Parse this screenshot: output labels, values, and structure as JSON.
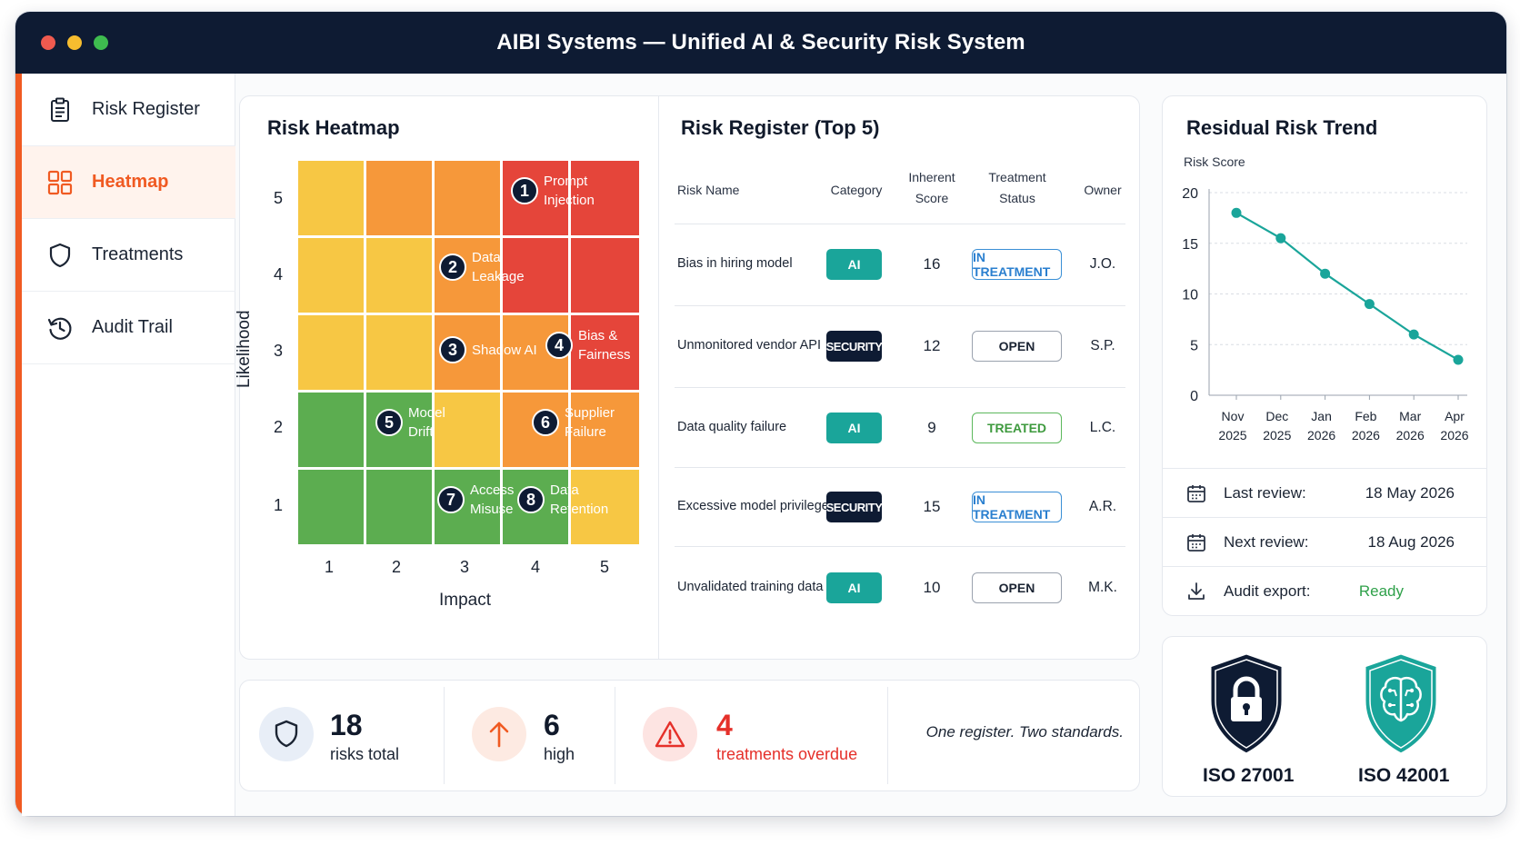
{
  "window": {
    "title": "AIBI Systems — Unified AI & Security Risk System"
  },
  "sidebar": {
    "items": [
      {
        "label": "Risk Register",
        "icon": "clipboard-icon",
        "active": false
      },
      {
        "label": "Heatmap",
        "icon": "grid-icon",
        "active": true
      },
      {
        "label": "Treatments",
        "icon": "shield-icon",
        "active": false
      },
      {
        "label": "Audit Trail",
        "icon": "history-icon",
        "active": false
      }
    ]
  },
  "heatmap": {
    "title": "Risk Heatmap",
    "x_label": "Impact",
    "y_label": "Likelihood",
    "x_ticks": [
      "1",
      "2",
      "3",
      "4",
      "5"
    ],
    "y_ticks": [
      "5",
      "4",
      "3",
      "2",
      "1"
    ],
    "risks": [
      {
        "num": "1",
        "label": "Prompt\nInjection"
      },
      {
        "num": "2",
        "label": "Data\nLeakage"
      },
      {
        "num": "3",
        "label": "Shadow AI"
      },
      {
        "num": "4",
        "label": "Bias &\nFairness"
      },
      {
        "num": "5",
        "label": "Model\nDrift"
      },
      {
        "num": "6",
        "label": "Supplier\nFailure"
      },
      {
        "num": "7",
        "label": "Access\nMisuse"
      },
      {
        "num": "8",
        "label": "Data\nRetention"
      }
    ]
  },
  "register": {
    "title": "Risk Register (Top 5)",
    "headers": {
      "name": "Risk Name",
      "category": "Category",
      "score_1": "Inherent",
      "score_2": "Score",
      "status_1": "Treatment",
      "status_2": "Status",
      "owner": "Owner"
    },
    "rows": [
      {
        "name": "Bias in hiring model",
        "category": "AI",
        "score": "16",
        "status": "IN TREATMENT",
        "owner": "J.O."
      },
      {
        "name": "Unmonitored vendor API",
        "category": "SECURITY",
        "score": "12",
        "status": "OPEN",
        "owner": "S.P."
      },
      {
        "name": "Data quality failure",
        "category": "AI",
        "score": "9",
        "status": "TREATED",
        "owner": "L.C."
      },
      {
        "name": "Excessive model privileges",
        "category": "SECURITY",
        "score": "15",
        "status": "IN TREATMENT",
        "owner": "A.R."
      },
      {
        "name": "Unvalidated training data",
        "category": "AI",
        "score": "10",
        "status": "OPEN",
        "owner": "M.K."
      }
    ]
  },
  "trend": {
    "title": "Residual Risk Trend",
    "chart_data": {
      "type": "line",
      "ylabel": "Risk Score",
      "x_month": [
        "Nov",
        "Dec",
        "Jan",
        "Feb",
        "Mar",
        "Apr"
      ],
      "x_year": [
        "2025",
        "2025",
        "2026",
        "2026",
        "2026",
        "2026"
      ],
      "values": [
        18,
        15.5,
        12,
        9,
        6,
        3.5
      ],
      "ylim": [
        0,
        20
      ],
      "y_ticks": [
        "20",
        "15",
        "10",
        "5",
        "0"
      ],
      "grid": true,
      "color": "#1aa59a"
    },
    "info": [
      {
        "label": "Last review:",
        "value": "18 May 2026",
        "icon": "calendar-icon"
      },
      {
        "label": "Next review:",
        "value": "18 Aug 2026",
        "icon": "calendar-icon"
      },
      {
        "label": "Audit export:",
        "value": "Ready",
        "icon": "download-icon"
      }
    ]
  },
  "stats": {
    "total": {
      "value": "18",
      "label": "risks total"
    },
    "high": {
      "value": "6",
      "label": "high"
    },
    "overdue": {
      "value": "4",
      "label": "treatments overdue"
    },
    "tagline": "One register. Two standards."
  },
  "standards": [
    {
      "label": "ISO 27001",
      "icon": "lock-shield-icon",
      "color": "#0e1b33"
    },
    {
      "label": "ISO 42001",
      "icon": "brain-shield-icon",
      "color": "#1aa59a"
    }
  ],
  "colors": {
    "accent": "#f05a22",
    "navy": "#0e1b33",
    "teal": "#1aa59a",
    "green": "#5cad50",
    "yellow": "#f7c744",
    "orange": "#f6983a",
    "red": "#e5453a"
  }
}
